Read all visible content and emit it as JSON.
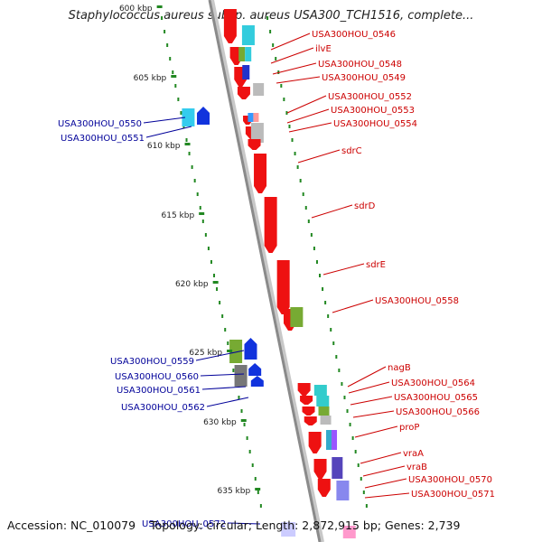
{
  "title": "Staphylococcus aureus subsp. aureus USA300_TCH1516, complete...",
  "footer": {
    "accession": "Accession: NC_010079",
    "topology": "Topology: circular; Length: 2,872,915 bp; Genes: 2,739"
  },
  "ruler": [
    "600 kbp",
    "605 kbp",
    "610 kbp",
    "615 kbp",
    "620 kbp",
    "625 kbp",
    "630 kbp",
    "635 kbp"
  ],
  "colors": {
    "forward_gene": "#ee1111",
    "reverse_gene": "#1133dd",
    "forward_label": "#cc0000",
    "reverse_label": "#000099",
    "backbone": "#999999",
    "ticks": "#228822"
  },
  "forward_labels": [
    "USA300HOU_0546",
    "ilvE",
    "USA300HOU_0548",
    "USA300HOU_0549",
    "USA300HOU_0552",
    "USA300HOU_0553",
    "USA300HOU_0554",
    "sdrC",
    "sdrD",
    "sdrE",
    "USA300HOU_0558",
    "nagB",
    "USA300HOU_0564",
    "USA300HOU_0565",
    "USA300HOU_0566",
    "proP",
    "vraA",
    "vraB",
    "USA300HOU_0570",
    "USA300HOU_0571"
  ],
  "reverse_labels": [
    "USA300HOU_0550",
    "USA300HOU_0551",
    "USA300HOU_0559",
    "USA300HOU_0560",
    "USA300HOU_0561",
    "USA300HOU_0562",
    "USA300HOU_0572"
  ]
}
